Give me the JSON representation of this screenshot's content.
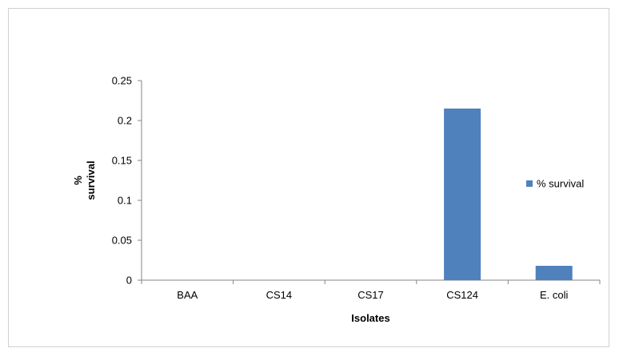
{
  "chart_data": {
    "type": "bar",
    "categories": [
      "BAA",
      "CS14",
      "CS17",
      "CS124",
      "E. coli"
    ],
    "series": [
      {
        "name": "% survival",
        "values": [
          0,
          0,
          0,
          0.215,
          0.018
        ],
        "color": "#4f81bd"
      }
    ],
    "xlabel": "Isolates",
    "ylabel": "% survival",
    "ylim": [
      0,
      0.25
    ],
    "yticks": [
      "0",
      "0.05",
      "0.1",
      "0.15",
      "0.2",
      "0.25"
    ],
    "grid": false,
    "legend_position": "right"
  }
}
